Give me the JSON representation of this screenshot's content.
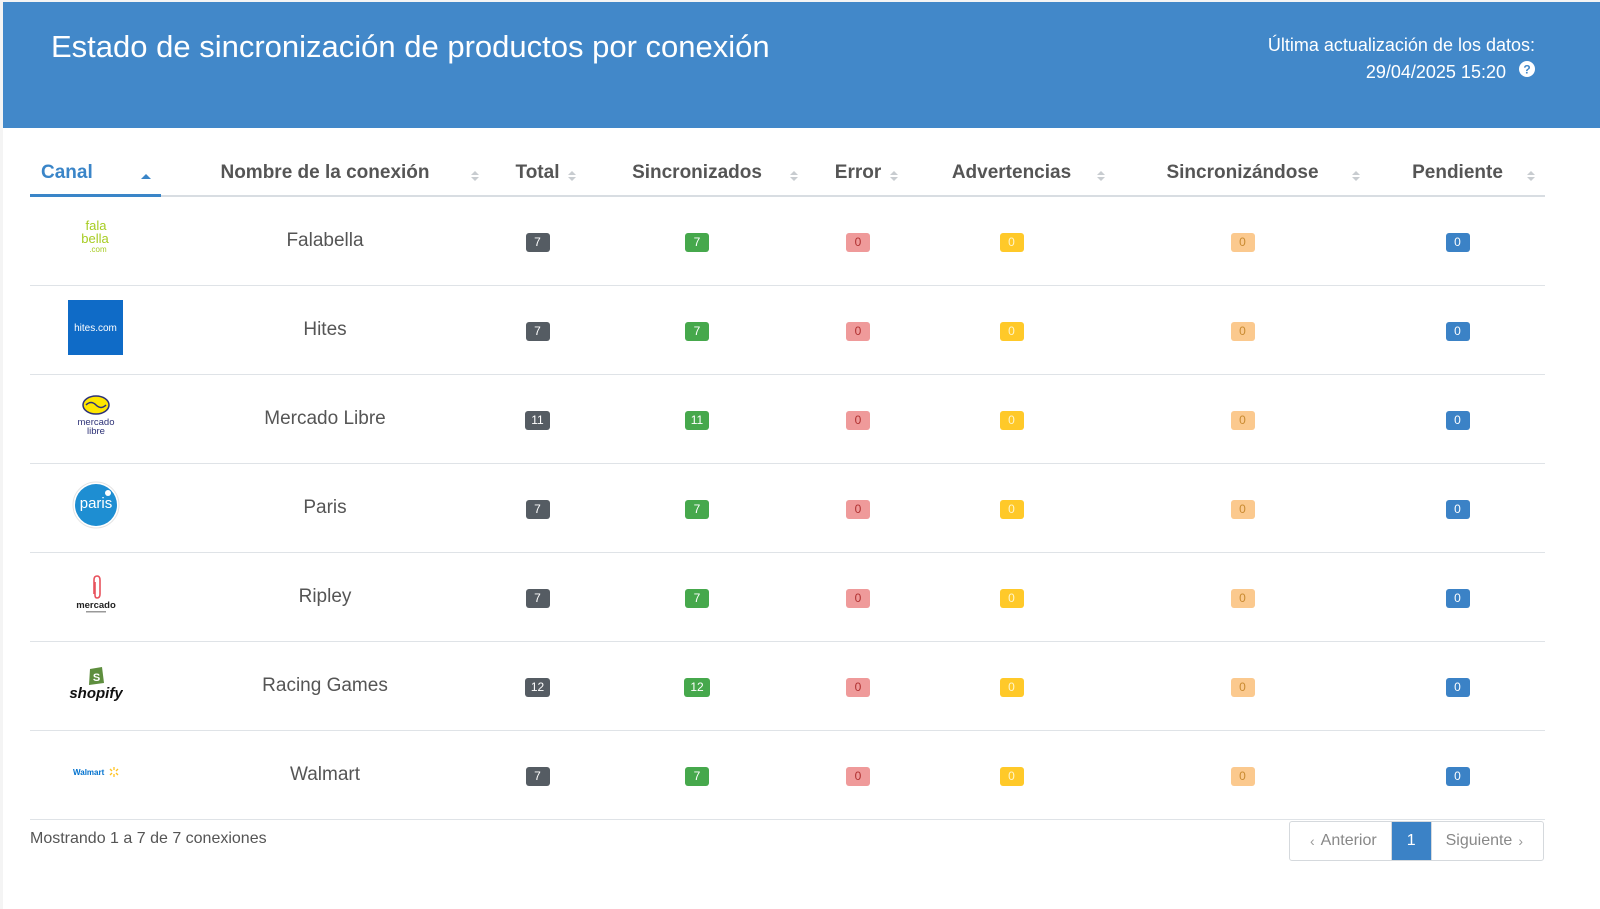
{
  "header": {
    "title": "Estado de sincronización de productos por conexión",
    "update_label": "Última actualización de los datos:",
    "update_value": "29/04/2025 15:20"
  },
  "table": {
    "columns": [
      "Canal",
      "Nombre de la conexión",
      "Total",
      "Sincronizados",
      "Error",
      "Advertencias",
      "Sincronizándose",
      "Pendiente"
    ],
    "rows": [
      {
        "logo": "falabella-logo",
        "logo_text": [
          "fala",
          "bella",
          ".com"
        ],
        "name": "Falabella",
        "total": "7",
        "sync": "7",
        "error": "0",
        "warn": "0",
        "syncing": "0",
        "pending": "0"
      },
      {
        "logo": "hites-logo",
        "logo_text": [
          "hites.com"
        ],
        "name": "Hites",
        "total": "7",
        "sync": "7",
        "error": "0",
        "warn": "0",
        "syncing": "0",
        "pending": "0"
      },
      {
        "logo": "mercadolibre-logo",
        "logo_text": [
          "mercado",
          "libre"
        ],
        "name": "Mercado Libre",
        "total": "11",
        "sync": "11",
        "error": "0",
        "warn": "0",
        "syncing": "0",
        "pending": "0"
      },
      {
        "logo": "paris-logo",
        "logo_text": [
          "paris"
        ],
        "name": "Paris",
        "total": "7",
        "sync": "7",
        "error": "0",
        "warn": "0",
        "syncing": "0",
        "pending": "0"
      },
      {
        "logo": "mercado-ripley-logo",
        "logo_text": [
          "mercado"
        ],
        "name": "Ripley",
        "total": "7",
        "sync": "7",
        "error": "0",
        "warn": "0",
        "syncing": "0",
        "pending": "0"
      },
      {
        "logo": "shopify-logo",
        "logo_text": [
          "shopify"
        ],
        "name": "Racing Games",
        "total": "12",
        "sync": "12",
        "error": "0",
        "warn": "0",
        "syncing": "0",
        "pending": "0"
      },
      {
        "logo": "walmart-logo",
        "logo_text": [
          "Walmart"
        ],
        "name": "Walmart",
        "total": "7",
        "sync": "7",
        "error": "0",
        "warn": "0",
        "syncing": "0",
        "pending": "0"
      }
    ]
  },
  "footer": {
    "info": "Mostrando 1 a 7 de 7 conexiones",
    "prev": "Anterior",
    "page": "1",
    "next": "Siguiente"
  },
  "colors": {
    "header_bg": "#4288c9",
    "total": "#555c63",
    "sync": "#46a84c",
    "error": "#ef9a9a",
    "warn": "#ffc929",
    "syncing": "#fbc98e",
    "pending": "#3b82c6"
  }
}
